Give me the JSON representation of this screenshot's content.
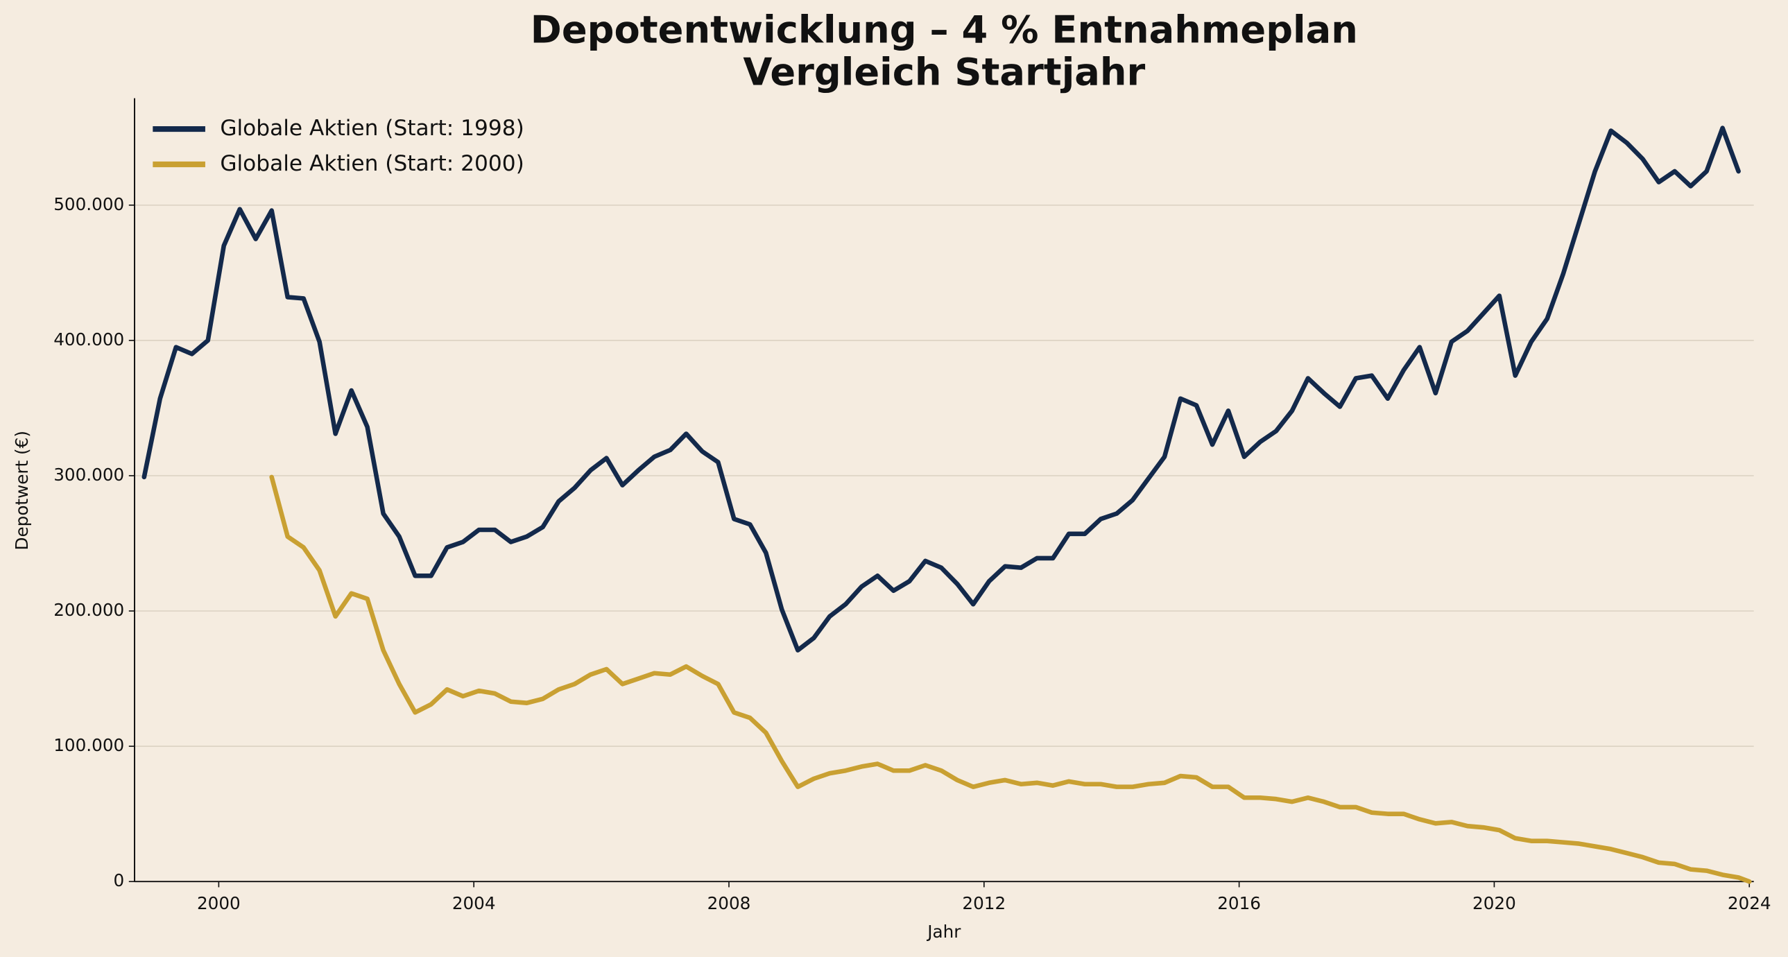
{
  "chart_data": {
    "type": "line",
    "title": "Depotentwicklung – 4 % Entnahmeplan",
    "subtitle": "Vergleich Startjahr",
    "xlabel": "Jahr",
    "ylabel": "Depotwert (€)",
    "x": [
      1998.83,
      1999.08,
      1999.33,
      1999.58,
      1999.83,
      2000.08,
      2000.33,
      2000.58,
      2000.83,
      2001.08,
      2001.33,
      2001.58,
      2001.83,
      2002.08,
      2002.33,
      2002.58,
      2002.83,
      2003.08,
      2003.33,
      2003.58,
      2003.83,
      2004.08,
      2004.33,
      2004.58,
      2004.83,
      2005.08,
      2005.33,
      2005.58,
      2005.83,
      2006.08,
      2006.33,
      2006.58,
      2006.83,
      2007.08,
      2007.33,
      2007.58,
      2007.83,
      2008.08,
      2008.33,
      2008.58,
      2008.83,
      2009.08,
      2009.33,
      2009.58,
      2009.83,
      2010.08,
      2010.33,
      2010.58,
      2010.83,
      2011.08,
      2011.33,
      2011.58,
      2011.83,
      2012.08,
      2012.33,
      2012.58,
      2012.83,
      2013.08,
      2013.33,
      2013.58,
      2013.83,
      2014.08,
      2014.33,
      2014.58,
      2014.83,
      2015.08,
      2015.33,
      2015.58,
      2015.83,
      2016.08,
      2016.33,
      2016.58,
      2016.83,
      2017.08,
      2017.33,
      2017.58,
      2017.83,
      2018.08,
      2018.33,
      2018.58,
      2018.83,
      2019.08,
      2019.33,
      2019.58,
      2019.83,
      2020.08,
      2020.33,
      2020.58,
      2020.83,
      2021.08,
      2021.33,
      2021.58,
      2021.83,
      2022.08,
      2022.33,
      2022.58,
      2022.83,
      2023.08,
      2023.33,
      2023.58,
      2023.83,
      2024.0
    ],
    "series": [
      {
        "name": "Globale Aktien (Start: 1998)",
        "color": "#13294b",
        "values": [
          299000,
          357000,
          395000,
          390000,
          400000,
          470000,
          497000,
          475000,
          496000,
          432000,
          431000,
          399000,
          331000,
          363000,
          336000,
          272000,
          255000,
          226000,
          226000,
          247000,
          251000,
          260000,
          260000,
          251000,
          255000,
          262000,
          281000,
          291000,
          304000,
          313000,
          293000,
          304000,
          314000,
          319000,
          331000,
          318000,
          310000,
          268000,
          264000,
          243000,
          201000,
          171000,
          180000,
          196000,
          205000,
          218000,
          226000,
          215000,
          222000,
          237000,
          232000,
          220000,
          205000,
          222000,
          233000,
          232000,
          239000,
          239000,
          257000,
          257000,
          268000,
          272000,
          282000,
          298000,
          314000,
          357000,
          352000,
          323000,
          348000,
          314000,
          325000,
          333000,
          348000,
          372000,
          361000,
          351000,
          372000,
          374000,
          357000,
          378000,
          395000,
          361000,
          399000,
          407000,
          420000,
          433000,
          374000,
          399000,
          416000,
          449000,
          487000,
          525000,
          555000,
          546000,
          534000,
          517000,
          525000,
          514000,
          525000,
          557000,
          525000,
          null
        ]
      },
      {
        "name": "Globale Aktien (Start: 2000)",
        "color": "#c9a032",
        "values": [
          null,
          null,
          null,
          null,
          null,
          null,
          null,
          null,
          299000,
          255000,
          247000,
          230000,
          196000,
          213000,
          209000,
          171000,
          146000,
          125000,
          131000,
          142000,
          137000,
          141000,
          139000,
          133000,
          132000,
          135000,
          142000,
          146000,
          153000,
          157000,
          146000,
          150000,
          154000,
          153000,
          159000,
          152000,
          146000,
          125000,
          121000,
          110000,
          89000,
          70000,
          76000,
          80000,
          82000,
          85000,
          87000,
          82000,
          82000,
          86000,
          82000,
          75000,
          70000,
          73000,
          75000,
          72000,
          73000,
          71000,
          74000,
          72000,
          72000,
          70000,
          70000,
          72000,
          73000,
          78000,
          77000,
          70000,
          70000,
          62000,
          62000,
          61000,
          59000,
          62000,
          59000,
          55000,
          55000,
          51000,
          50000,
          50000,
          46000,
          43000,
          44000,
          41000,
          40000,
          38000,
          32000,
          30000,
          30000,
          29000,
          28000,
          26000,
          24000,
          21000,
          18000,
          14000,
          13000,
          9000,
          8000,
          5000,
          3000,
          0
        ]
      }
    ],
    "xlim": [
      1998.68,
      2024.07
    ],
    "xticks": [
      2000,
      2004,
      2008,
      2012,
      2016,
      2020,
      2024
    ],
    "ylim": [
      0,
      579000
    ],
    "yticks": [
      0,
      {
        "value": 100000,
        "label": "100.000"
      },
      {
        "value": 200000,
        "label": "200.000"
      },
      {
        "value": 300000,
        "label": "300.000"
      },
      {
        "value": 400000,
        "label": "400.000"
      },
      {
        "value": 500000,
        "label": "500.000"
      }
    ],
    "grid": true,
    "legend": "upper left"
  }
}
